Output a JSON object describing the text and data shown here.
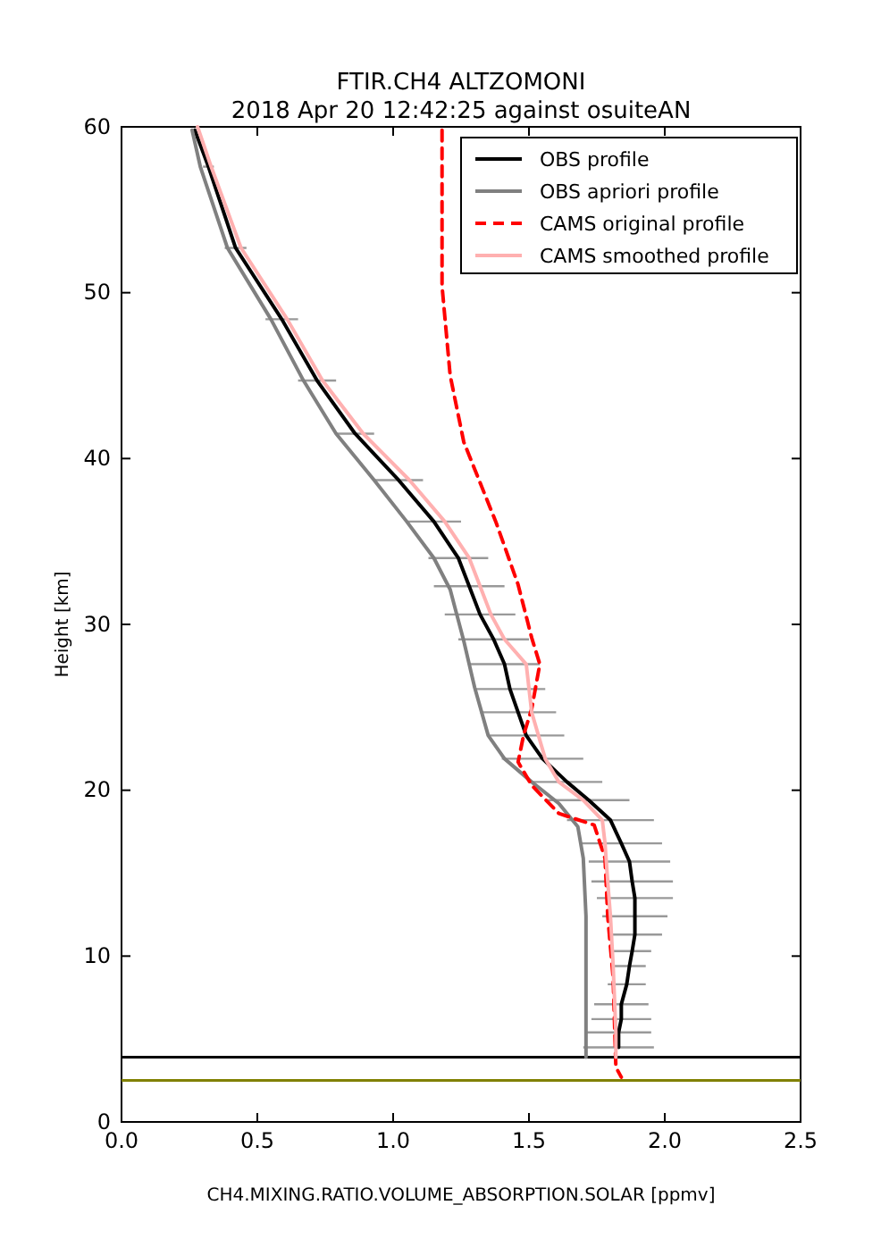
{
  "chart_data": {
    "type": "line",
    "title": "FTIR.CH4 ALTZOMONI",
    "subtitle": "2018 Apr 20 12:42:25 against osuiteAN",
    "xlabel": "CH4.MIXING.RATIO.VOLUME_ABSORPTION.SOLAR [ppmv]",
    "ylabel": "Height [km]",
    "xlim": [
      0,
      2.5
    ],
    "ylim": [
      0,
      60
    ],
    "xticks": [
      {
        "value": 0,
        "label": "0.0"
      },
      0.5,
      {
        "value": 1,
        "label": "1.0"
      },
      1.5,
      {
        "value": 2,
        "label": "2.0"
      },
      2.5
    ],
    "yticks": [
      0,
      10,
      20,
      30,
      40,
      50,
      60
    ],
    "grid": false,
    "legend": "top right",
    "ref_lines": [
      {
        "axis": "y",
        "value": 3.9,
        "label": null,
        "color": "#000000"
      },
      {
        "axis": "y",
        "value": 2.5,
        "label": null,
        "color": "#808000"
      }
    ],
    "series": [
      {
        "name": "OBS profile",
        "color": "#000000",
        "line_style": "solid",
        "x": [
          0.27,
          0.32,
          0.42,
          0.59,
          0.72,
          0.86,
          1.02,
          1.15,
          1.24,
          1.28,
          1.32,
          1.37,
          1.41,
          1.43,
          1.46,
          1.49,
          1.55,
          1.64,
          1.72,
          1.8,
          1.84,
          1.87,
          1.88,
          1.89,
          1.89,
          1.89,
          1.88,
          1.87,
          1.86,
          1.84,
          1.84,
          1.83,
          1.83
        ],
        "values": [
          59.8,
          57.6,
          52.7,
          48.4,
          44.7,
          41.5,
          38.7,
          36.2,
          34.0,
          32.3,
          30.6,
          29.1,
          27.6,
          26.1,
          24.7,
          23.3,
          21.9,
          20.5,
          19.4,
          18.2,
          16.8,
          15.7,
          14.5,
          13.5,
          12.4,
          11.3,
          10.3,
          9.4,
          8.3,
          7.1,
          6.2,
          5.4,
          4.5
        ],
        "xerrors": [
          null,
          0.02,
          0.04,
          0.06,
          0.07,
          0.07,
          0.09,
          0.1,
          0.11,
          0.13,
          0.13,
          0.13,
          0.13,
          0.13,
          0.14,
          0.14,
          0.15,
          0.13,
          0.15,
          0.16,
          0.15,
          0.15,
          0.15,
          0.14,
          0.12,
          0.1,
          0.07,
          0.06,
          0.07,
          0.1,
          0.11,
          0.12,
          0.13
        ]
      },
      {
        "name": "OBS apriori profile",
        "color": "#808080",
        "line_style": "solid",
        "x": [
          0.26,
          0.29,
          0.39,
          0.55,
          0.67,
          0.79,
          0.93,
          1.05,
          1.15,
          1.21,
          1.26,
          1.3,
          1.35,
          1.41,
          1.51,
          1.61,
          1.68,
          1.7,
          1.71,
          1.71
        ],
        "values": [
          59.8,
          57.6,
          52.7,
          48.4,
          44.7,
          41.5,
          38.7,
          36.2,
          34.0,
          32.1,
          29.0,
          26.2,
          23.3,
          21.9,
          20.5,
          19.2,
          17.8,
          15.9,
          12.4,
          3.9
        ]
      },
      {
        "name": "CAMS original profile",
        "color": "#ff0000",
        "line_style": "dashed",
        "x": [
          1.18,
          1.18,
          1.21,
          1.26,
          1.38,
          1.46,
          1.51,
          1.54,
          1.51,
          1.48,
          1.46,
          1.51,
          1.61,
          1.74,
          1.78,
          1.79,
          1.81,
          1.82,
          1.84
        ],
        "values": [
          59.8,
          50.4,
          45.0,
          41.0,
          36.1,
          32.4,
          29.2,
          27.6,
          24.9,
          23.3,
          21.7,
          20.3,
          18.6,
          17.9,
          15.9,
          12.4,
          8.7,
          3.3,
          2.7
        ]
      },
      {
        "name": "CAMS smoothed profile",
        "color": "#ffb0b0",
        "line_style": "solid",
        "x": [
          0.28,
          0.33,
          0.44,
          0.61,
          0.74,
          0.89,
          1.06,
          1.19,
          1.28,
          1.32,
          1.36,
          1.41,
          1.49,
          1.51,
          1.56,
          1.61,
          1.7,
          1.77,
          1.78,
          1.79,
          1.8,
          1.81,
          1.82,
          1.82
        ],
        "values": [
          60,
          57.6,
          52.7,
          48.4,
          44.7,
          41.5,
          38.7,
          36.2,
          34.0,
          32.3,
          30.6,
          29.1,
          27.6,
          24.7,
          21.9,
          20.5,
          19.4,
          18.2,
          16.8,
          14.5,
          12.4,
          9.4,
          5.4,
          3.9
        ]
      }
    ]
  }
}
